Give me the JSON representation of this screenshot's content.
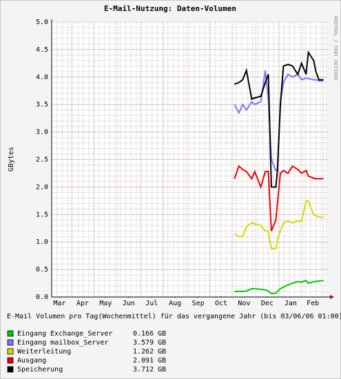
{
  "chart_data": {
    "type": "line",
    "title": "E-Mail-Nutzung: Daten-Volumen",
    "y_label": "GBytes",
    "watermark": "RRDTOOL / TOBI OETIKER",
    "caption": "E-Mail Volumen pro Tag(Wochenmittel) für das vergangene Jahr (bis 03/06/06 01:00)",
    "x": [
      242,
      248,
      253,
      258,
      265,
      269,
      277,
      283,
      287,
      291,
      297,
      299,
      303,
      307,
      313,
      319,
      326,
      331,
      337,
      340,
      347,
      350,
      354,
      360
    ],
    "xlim": [
      0,
      365
    ],
    "xticks": [
      {
        "value": 10.5,
        "label": "Mar"
      },
      {
        "value": 41,
        "label": "Apr"
      },
      {
        "value": 71.5,
        "label": "May"
      },
      {
        "value": 102,
        "label": "Jun"
      },
      {
        "value": 132.5,
        "label": "Jul"
      },
      {
        "value": 163.5,
        "label": "Aug"
      },
      {
        "value": 194,
        "label": "Sep"
      },
      {
        "value": 224.5,
        "label": "Oct"
      },
      {
        "value": 255,
        "label": "Nov"
      },
      {
        "value": 285.5,
        "label": "Dec"
      },
      {
        "value": 316.5,
        "label": "Jan"
      },
      {
        "value": 346,
        "label": "Feb"
      }
    ],
    "x_major_grid": [
      26,
      56,
      87,
      117,
      148,
      179,
      209,
      240,
      270,
      301,
      332,
      360
    ],
    "x_minor_step": 7,
    "y_minor_step": 0.1,
    "ylim": [
      0,
      5
    ],
    "yticks": [
      {
        "value": 0,
        "label": "0.0"
      },
      {
        "value": 0.5,
        "label": "0.5"
      },
      {
        "value": 1,
        "label": "1.0"
      },
      {
        "value": 1.5,
        "label": "1.5"
      },
      {
        "value": 2,
        "label": "2.0"
      },
      {
        "value": 2.5,
        "label": "2.5"
      },
      {
        "value": 3,
        "label": "3.0"
      },
      {
        "value": 3.5,
        "label": "3.5"
      },
      {
        "value": 4,
        "label": "4.0"
      },
      {
        "value": 4.5,
        "label": "4.5"
      },
      {
        "value": 5,
        "label": "5.0"
      }
    ],
    "grid": true,
    "series": [
      {
        "name": "Eingang Exchange_Server",
        "color": "#00cc00",
        "legend_value": "0.166 GB",
        "values": [
          0.1,
          0.1,
          0.1,
          0.11,
          0.15,
          0.15,
          0.14,
          0.13,
          0.11,
          0.06,
          0.07,
          0.1,
          0.15,
          0.18,
          0.22,
          0.25,
          0.28,
          0.27,
          0.3,
          0.25,
          0.28,
          0.28,
          0.29,
          0.3
        ]
      },
      {
        "name": "Eingang mailbox_Server",
        "color": "#7777ff",
        "legend_value": "3.579 GB",
        "values": [
          3.5,
          3.35,
          3.5,
          3.4,
          3.55,
          3.5,
          3.55,
          4.12,
          3.6,
          2.5,
          2.3,
          2.3,
          3.55,
          3.9,
          4.05,
          4.0,
          4.05,
          3.95,
          3.98,
          3.97,
          3.95,
          3.95,
          3.93,
          3.93
        ]
      },
      {
        "name": "Weiterleitung",
        "color": "#d8d800",
        "legend_value": "1.262 GB",
        "values": [
          1.15,
          1.1,
          1.1,
          1.28,
          1.35,
          1.33,
          1.3,
          1.2,
          1.2,
          0.88,
          0.88,
          1.05,
          1.2,
          1.35,
          1.38,
          1.35,
          1.38,
          1.38,
          1.75,
          1.75,
          1.5,
          1.48,
          1.45,
          1.45
        ]
      },
      {
        "name": "Ausgang",
        "color": "#ee0000",
        "legend_value": "2.091 GB",
        "values": [
          2.15,
          2.38,
          2.32,
          2.28,
          2.15,
          2.28,
          2.0,
          2.28,
          2.28,
          1.2,
          1.4,
          1.7,
          2.25,
          2.3,
          2.25,
          2.38,
          2.32,
          2.25,
          2.3,
          2.2,
          2.16,
          2.15,
          2.15,
          2.15
        ]
      },
      {
        "name": "Speicherung",
        "color": "#000000",
        "legend_value": "3.712 GB",
        "values": [
          3.87,
          3.9,
          3.95,
          4.12,
          3.6,
          3.62,
          3.65,
          3.9,
          4.05,
          2.0,
          2.0,
          2.3,
          3.5,
          4.2,
          4.23,
          4.2,
          4.05,
          4.25,
          4.05,
          4.45,
          4.3,
          4.1,
          3.95,
          3.95
        ]
      }
    ]
  }
}
